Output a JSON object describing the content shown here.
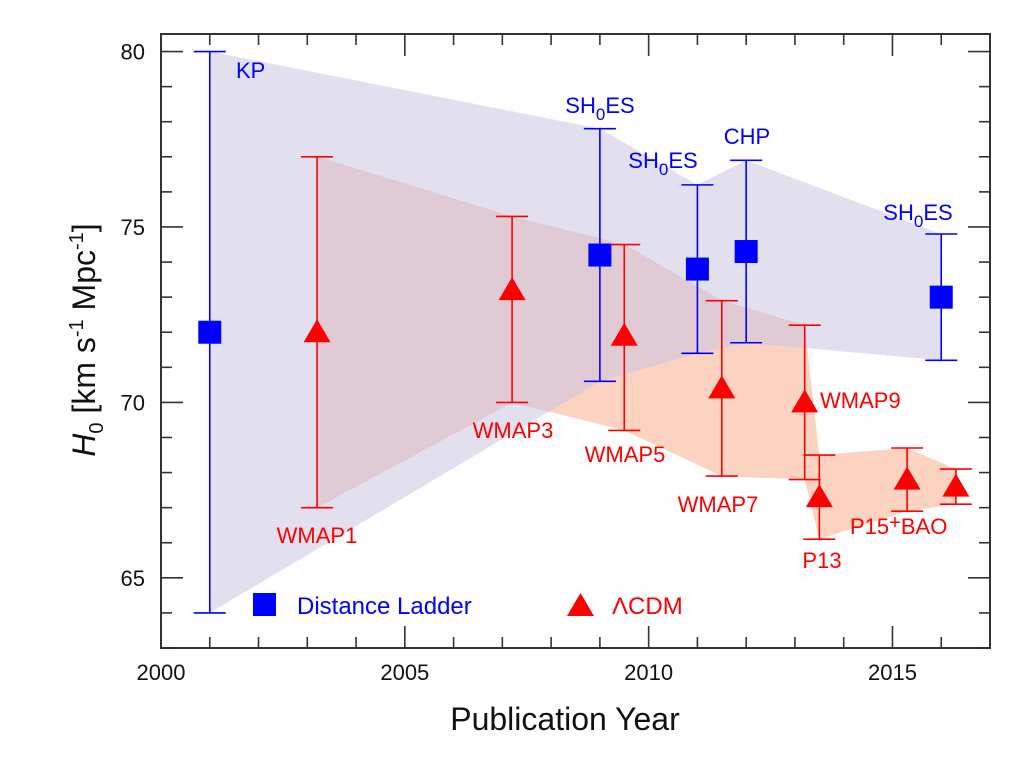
{
  "chart_data": {
    "type": "scatter",
    "title": "",
    "xlabel": "Publication Year",
    "ylabel": {
      "symbol": "H",
      "subscript": "0",
      "units": " [km s",
      "sup1": "-1",
      "units2": " Mpc",
      "sup2": "-1",
      "close": "]"
    },
    "xlim": [
      2000,
      2017
    ],
    "ylim": [
      63.0,
      80.5
    ],
    "xticks_major": [
      2000,
      2005,
      2010,
      2015
    ],
    "xtick_labels": [
      "2000",
      "2005",
      "2010",
      "2015"
    ],
    "yticks_major": [
      65,
      70,
      75,
      80
    ],
    "ytick_labels": [
      "65",
      "70",
      "75",
      "80"
    ],
    "minor_tick_step_x": 1,
    "minor_tick_step_y": 1,
    "grid": false,
    "legend_placement": "bottom-left",
    "colors": {
      "distance_ladder": "#0000ff",
      "lcdm": "#ff0000",
      "distance_ladder_band": "#e2e0ef",
      "lcdm_band": "#fcd3c1",
      "overlap_band": "#e0cad4",
      "axis": "#333333"
    },
    "series": [
      {
        "name": "Distance Ladder",
        "marker": "square",
        "points": [
          {
            "label": "KP",
            "x": 2001.0,
            "y": 72.0,
            "ylow": 64.0,
            "yhigh": 80.0
          },
          {
            "label": "SH0ES",
            "x": 2009.0,
            "y": 74.2,
            "ylow": 70.6,
            "yhigh": 77.8
          },
          {
            "label": "SH0ES",
            "x": 2011.0,
            "y": 73.8,
            "ylow": 71.4,
            "yhigh": 76.2
          },
          {
            "label": "CHP",
            "x": 2012.0,
            "y": 74.3,
            "ylow": 71.7,
            "yhigh": 76.9
          },
          {
            "label": "SH0ES",
            "x": 2016.0,
            "y": 73.0,
            "ylow": 71.2,
            "yhigh": 74.8
          }
        ]
      },
      {
        "name": "ΛCDM",
        "marker": "triangle",
        "points": [
          {
            "label": "WMAP1",
            "x": 2003.2,
            "y": 72.0,
            "ylow": 67.0,
            "yhigh": 77.0
          },
          {
            "label": "WMAP3",
            "x": 2007.2,
            "y": 73.2,
            "ylow": 70.0,
            "yhigh": 75.3
          },
          {
            "label": "WMAP5",
            "x": 2009.5,
            "y": 71.9,
            "ylow": 69.2,
            "yhigh": 74.5
          },
          {
            "label": "WMAP7",
            "x": 2011.5,
            "y": 70.4,
            "ylow": 67.9,
            "yhigh": 72.9
          },
          {
            "label": "WMAP9",
            "x": 2013.2,
            "y": 70.0,
            "ylow": 67.8,
            "yhigh": 72.2
          },
          {
            "label": "P13",
            "x": 2013.5,
            "y": 67.3,
            "ylow": 66.1,
            "yhigh": 68.5
          },
          {
            "label": "P15",
            "x": 2015.3,
            "y": 67.8,
            "ylow": 66.9,
            "yhigh": 68.7
          },
          {
            "label": "BAO",
            "x": 2016.3,
            "y": 67.6,
            "ylow": 67.1,
            "yhigh": 68.1
          }
        ]
      }
    ],
    "annotations": [
      {
        "text": "KP",
        "series": 0,
        "point": 0,
        "anchor": "right-of-top"
      },
      {
        "text": "SH",
        "sub": "0",
        "text2": "ES",
        "series": 0,
        "point": 1,
        "anchor": "above"
      },
      {
        "text": "SH",
        "sub": "0",
        "text2": "ES",
        "series": 0,
        "point": 2,
        "anchor": "above"
      },
      {
        "text": "CHP",
        "series": 0,
        "point": 3,
        "anchor": "above"
      },
      {
        "text": "SH",
        "sub": "0",
        "text2": "ES",
        "series": 0,
        "point": 4,
        "anchor": "above"
      },
      {
        "text": "WMAP1",
        "series": 1,
        "point": 0,
        "anchor": "below"
      },
      {
        "text": "WMAP3",
        "series": 1,
        "point": 1,
        "anchor": "below"
      },
      {
        "text": "WMAP5",
        "series": 1,
        "point": 2,
        "anchor": "below"
      },
      {
        "text": "WMAP7",
        "series": 1,
        "point": 3,
        "anchor": "below"
      },
      {
        "text": "WMAP9",
        "series": 1,
        "point": 4,
        "anchor": "right"
      },
      {
        "text": "P13",
        "series": 1,
        "point": 5,
        "anchor": "below"
      },
      {
        "text": "P15",
        "plus": "+",
        "text2": "BAO",
        "series": 1,
        "point": 6,
        "anchor": "below-right"
      }
    ],
    "legend": [
      {
        "label": "Distance Ladder",
        "marker": "square",
        "color_key": "distance_ladder"
      },
      {
        "label": "ΛCDM",
        "marker": "triangle",
        "color_key": "lcdm"
      }
    ]
  }
}
